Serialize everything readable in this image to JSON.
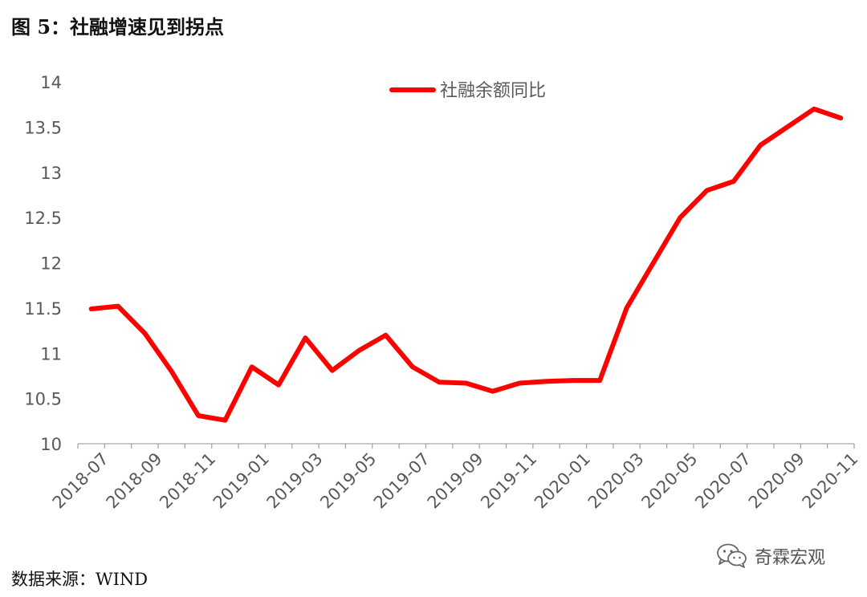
{
  "figure": {
    "title": "图 5：社融增速见到拐点",
    "source": "数据来源：WIND",
    "watermark": "奇霖宏观",
    "watermark_icon": "wechat-icon"
  },
  "chart_data": {
    "type": "line",
    "title": "",
    "xlabel": "",
    "ylabel": "",
    "ylim": [
      10,
      14
    ],
    "yticks": [
      "10",
      "10.5",
      "11",
      "11.5",
      "12",
      "12.5",
      "13",
      "13.5",
      "14"
    ],
    "xtick_labels": [
      "2018-07",
      "2018-09",
      "2018-11",
      "2019-01",
      "2019-03",
      "2019-05",
      "2019-07",
      "2019-09",
      "2019-11",
      "2020-01",
      "2020-03",
      "2020-05",
      "2020-07",
      "2020-09",
      "2020-11"
    ],
    "x": [
      "2018-07",
      "2018-08",
      "2018-09",
      "2018-10",
      "2018-11",
      "2018-12",
      "2019-01",
      "2019-02",
      "2019-03",
      "2019-04",
      "2019-05",
      "2019-06",
      "2019-07",
      "2019-08",
      "2019-09",
      "2019-10",
      "2019-11",
      "2019-12",
      "2020-01",
      "2020-02",
      "2020-03",
      "2020-04",
      "2020-05",
      "2020-06",
      "2020-07",
      "2020-08",
      "2020-09",
      "2020-10",
      "2020-11"
    ],
    "series": [
      {
        "name": "社融余额同比",
        "color": "#ff0000",
        "values": [
          11.49,
          11.52,
          11.22,
          10.8,
          10.31,
          10.26,
          10.85,
          10.65,
          11.17,
          10.81,
          11.03,
          11.2,
          10.85,
          10.68,
          10.67,
          10.58,
          10.67,
          10.69,
          10.7,
          10.7,
          11.5,
          12.0,
          12.5,
          12.8,
          12.9,
          13.3,
          13.5,
          13.7,
          13.6
        ]
      }
    ],
    "grid": false,
    "legend": "top-center",
    "colors": {
      "axis": "#a6a6a6",
      "tick_text": "#595959"
    }
  }
}
